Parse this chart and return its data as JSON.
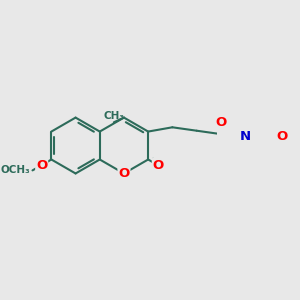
{
  "bg_color": "#e8e8e8",
  "bond_color": "#2d6b5a",
  "bond_width": 1.5,
  "atom_colors": {
    "O": "#ff0000",
    "N": "#0000cc"
  },
  "font_size": 9,
  "figsize": [
    3.0,
    3.0
  ],
  "dpi": 100
}
